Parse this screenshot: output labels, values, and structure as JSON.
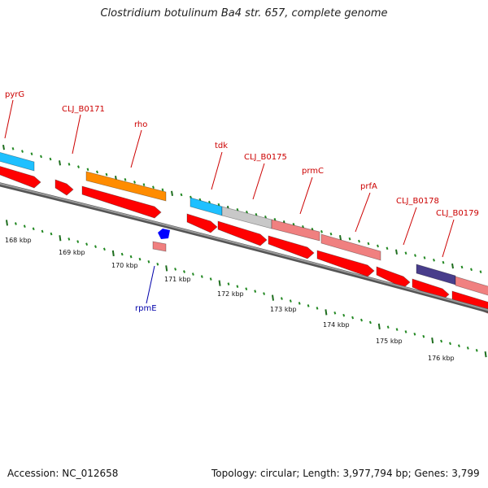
{
  "map": {
    "title": "Clostridium botulinum Ba4 str. 657, complete genome",
    "footer": {
      "accession": "Accession: NC_012658",
      "summary": "Topology: circular; Length: 3,977,794 bp; Genes: 3,799"
    },
    "colors": {
      "backbone": "#7a7a7a",
      "cds": "#ff0000",
      "tick_minor": "#228822",
      "tick_major": "#1f6e1f",
      "label_red": "#cc0000",
      "label_blue": "#0000aa"
    },
    "scale_ticks": [
      "168 kbp",
      "169 kbp",
      "170 kbp",
      "171 kbp",
      "172 kbp",
      "173 kbp",
      "174 kbp",
      "175 kbp",
      "176 kbp"
    ],
    "genes": [
      {
        "name": "pyrG",
        "color": "#1ec0ff",
        "label_color": "#cc0000"
      },
      {
        "name": "CLJ_B0171",
        "color": "#ff0000",
        "label_color": "#cc0000"
      },
      {
        "name": "rho",
        "color": "#ff8c00",
        "label_color": "#cc0000"
      },
      {
        "name": "tdk",
        "color": "#1ec0ff",
        "label_color": "#cc0000"
      },
      {
        "name": "CLJ_B0175",
        "color": "#c8c8c8",
        "label_color": "#cc0000"
      },
      {
        "name": "prmC",
        "color": "#f08080",
        "label_color": "#cc0000"
      },
      {
        "name": "prfA",
        "color": "#f08080",
        "label_color": "#cc0000"
      },
      {
        "name": "CLJ_B0178",
        "color": "#f08080",
        "label_color": "#cc0000"
      },
      {
        "name": "CLJ_B0179",
        "color": "#483d8b",
        "label_color": "#cc0000"
      },
      {
        "name": "rpmE",
        "color": "#0000ff",
        "label_color": "#0000aa"
      }
    ]
  }
}
